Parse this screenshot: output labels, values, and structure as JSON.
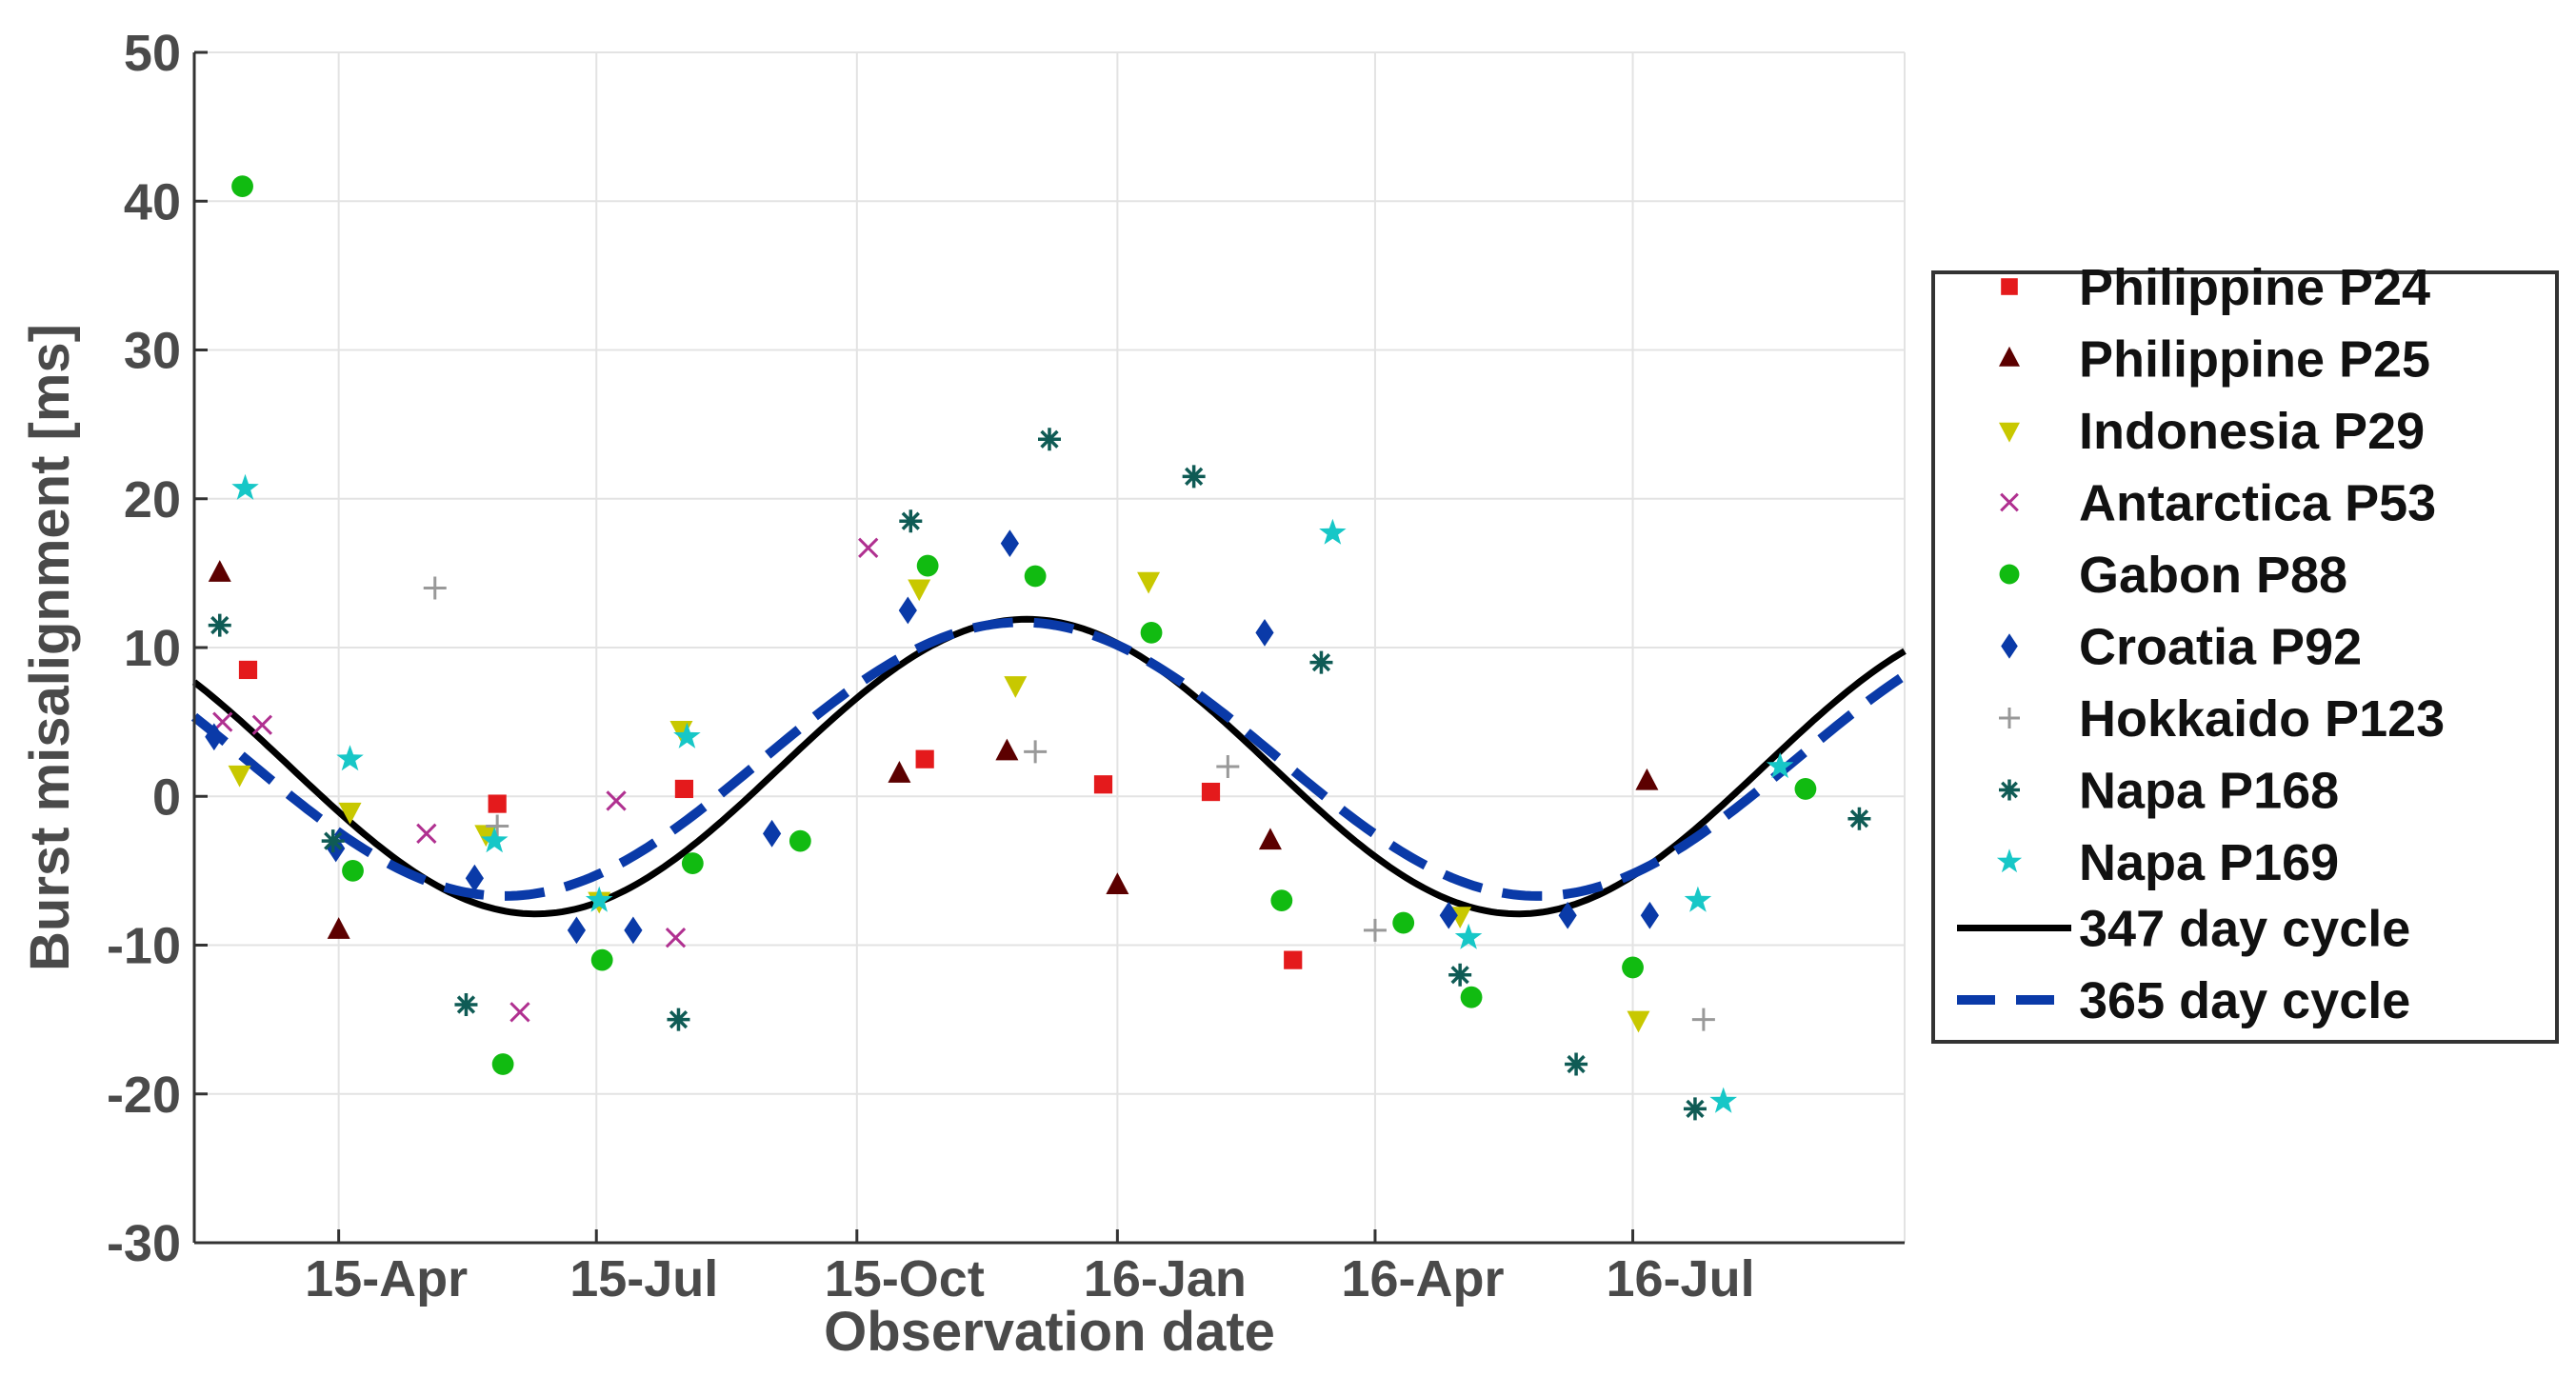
{
  "chart_data": {
    "type": "scatter",
    "title": "",
    "xlabel": "Observation date",
    "ylabel": "Burst misalignment [ms]",
    "x_unit": "days since 2015-01-01",
    "xlim": [
      53,
      657
    ],
    "ylim": [
      -30,
      50
    ],
    "grid": true,
    "x_ticks": [
      {
        "label": "15-Apr",
        "value": 104
      },
      {
        "label": "15-Jul",
        "value": 195
      },
      {
        "label": "15-Oct",
        "value": 287
      },
      {
        "label": "16-Jan",
        "value": 379
      },
      {
        "label": "16-Apr",
        "value": 470
      },
      {
        "label": "16-Jul",
        "value": 561
      }
    ],
    "y_ticks": [
      50,
      40,
      30,
      20,
      10,
      0,
      -10,
      -20,
      -30
    ],
    "legend_position": "right",
    "series": [
      {
        "name": "Philippine P24",
        "marker": "square",
        "color": "#e41a1c",
        "points": [
          [
            72,
            8.5
          ],
          [
            160,
            -0.5
          ],
          [
            226,
            0.5
          ],
          [
            311,
            2.5
          ],
          [
            374,
            0.8
          ],
          [
            412,
            0.3
          ],
          [
            441,
            -11
          ]
        ]
      },
      {
        "name": "Philippine P25",
        "marker": "triangle-up",
        "color": "#5c0000",
        "points": [
          [
            62,
            15
          ],
          [
            104,
            -9
          ],
          [
            302,
            1.5
          ],
          [
            340,
            3
          ],
          [
            379,
            -6
          ],
          [
            433,
            -3
          ],
          [
            566,
            1
          ]
        ]
      },
      {
        "name": "Indonesia P29",
        "marker": "triangle-down",
        "color": "#c8c800",
        "points": [
          [
            69,
            1.5
          ],
          [
            108,
            -1
          ],
          [
            156,
            -2.5
          ],
          [
            196,
            -7
          ],
          [
            225,
            4.5
          ],
          [
            309,
            14
          ],
          [
            343,
            7.5
          ],
          [
            390,
            14.5
          ],
          [
            500,
            -8
          ],
          [
            563,
            -15
          ]
        ]
      },
      {
        "name": "Antarctica P53",
        "marker": "x",
        "color": "#b03090",
        "points": [
          [
            63,
            5
          ],
          [
            77,
            4.8
          ],
          [
            135,
            -2.5
          ],
          [
            168,
            -14.5
          ],
          [
            202,
            -0.3
          ],
          [
            223,
            -9.5
          ],
          [
            291,
            16.7
          ]
        ]
      },
      {
        "name": "Gabon P88",
        "marker": "circle",
        "color": "#11bb11",
        "points": [
          [
            70,
            41
          ],
          [
            109,
            -5
          ],
          [
            162,
            -18
          ],
          [
            197,
            -11
          ],
          [
            229,
            -4.5
          ],
          [
            267,
            -3
          ],
          [
            312,
            15.5
          ],
          [
            350,
            14.8
          ],
          [
            391,
            11
          ],
          [
            437,
            -7
          ],
          [
            480,
            -8.5
          ],
          [
            504,
            -13.5
          ],
          [
            561,
            -11.5
          ],
          [
            622,
            0.5
          ]
        ]
      },
      {
        "name": "Croatia P92",
        "marker": "diamond",
        "color": "#0a3aa8",
        "points": [
          [
            60,
            4
          ],
          [
            103,
            -3.5
          ],
          [
            152,
            -5.5
          ],
          [
            188,
            -9
          ],
          [
            208,
            -9
          ],
          [
            257,
            -2.5
          ],
          [
            305,
            12.5
          ],
          [
            341,
            17
          ],
          [
            431,
            11
          ],
          [
            496,
            -8
          ],
          [
            538,
            -8
          ],
          [
            567,
            -8
          ]
        ]
      },
      {
        "name": "Hokkaido P123",
        "marker": "plus",
        "color": "#999999",
        "points": [
          [
            138,
            14
          ],
          [
            160,
            -2
          ],
          [
            350,
            3
          ],
          [
            418,
            2
          ],
          [
            470,
            -9
          ],
          [
            586,
            -15
          ]
        ]
      },
      {
        "name": "Napa P168",
        "marker": "asterisk",
        "color": "#0f5b55",
        "points": [
          [
            62,
            11.5
          ],
          [
            102,
            -3
          ],
          [
            149,
            -14
          ],
          [
            224,
            -15
          ],
          [
            306,
            18.5
          ],
          [
            355,
            24
          ],
          [
            406,
            21.5
          ],
          [
            451,
            9
          ],
          [
            500,
            -12
          ],
          [
            541,
            -18
          ],
          [
            583,
            -21
          ],
          [
            641,
            -1.5
          ]
        ]
      },
      {
        "name": "Napa P169",
        "marker": "star",
        "color": "#17c7c7",
        "points": [
          [
            71,
            20.7
          ],
          [
            108,
            2.5
          ],
          [
            159,
            -3
          ],
          [
            196,
            -7
          ],
          [
            227,
            4
          ],
          [
            455,
            17.7
          ],
          [
            503,
            -9.5
          ],
          [
            584,
            -7
          ],
          [
            593,
            -20.5
          ],
          [
            613,
            2
          ]
        ]
      }
    ],
    "fits": [
      {
        "name": "347 day cycle",
        "style": "solid",
        "color": "#000000",
        "period": 347,
        "amplitude": 9.9,
        "offset": 2.0,
        "peak_day": 347
      },
      {
        "name": "365 day cycle",
        "style": "dashed",
        "color": "#0a3aa8",
        "period": 365,
        "amplitude": 9.2,
        "offset": 2.5,
        "peak_day": 345
      }
    ]
  }
}
